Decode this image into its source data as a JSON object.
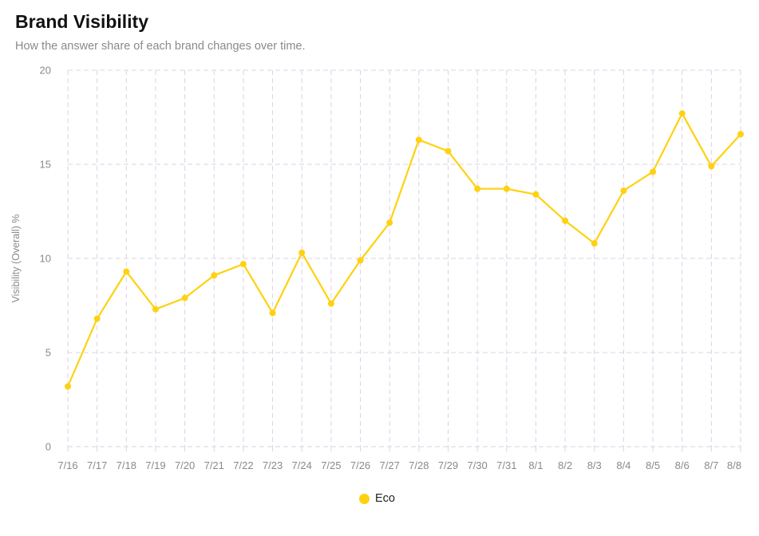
{
  "header": {
    "title": "Brand Visibility",
    "subtitle": "How the answer share of each brand changes over time."
  },
  "colors": {
    "series": "#FFD110",
    "grid": "#ddd2e6",
    "axis_text": "#8a8a8a"
  },
  "legend": {
    "items": [
      {
        "label": "Eco",
        "color": "#FFD110"
      }
    ]
  },
  "chart_data": {
    "type": "line",
    "title": "Brand Visibility",
    "subtitle": "How the answer share of each brand changes over time.",
    "xlabel": "",
    "ylabel": "Visibility (Overall) %",
    "ylim": [
      0,
      20
    ],
    "yticks": [
      0,
      5,
      10,
      15,
      20
    ],
    "grid": true,
    "legend_position": "bottom-center",
    "x": [
      "7/16",
      "7/17",
      "7/18",
      "7/19",
      "7/20",
      "7/21",
      "7/22",
      "7/23",
      "7/24",
      "7/25",
      "7/26",
      "7/27",
      "7/28",
      "7/29",
      "7/30",
      "7/31",
      "8/1",
      "8/2",
      "8/3",
      "8/4",
      "8/5",
      "8/6",
      "8/7",
      "8/8"
    ],
    "series": [
      {
        "name": "Eco",
        "color": "#FFD110",
        "values": [
          3.2,
          6.8,
          9.3,
          7.3,
          7.9,
          9.1,
          9.7,
          7.1,
          10.3,
          7.6,
          9.9,
          11.9,
          16.3,
          15.7,
          13.7,
          13.7,
          13.4,
          12.0,
          10.8,
          13.6,
          14.6,
          17.7,
          14.9,
          16.6
        ]
      }
    ]
  }
}
